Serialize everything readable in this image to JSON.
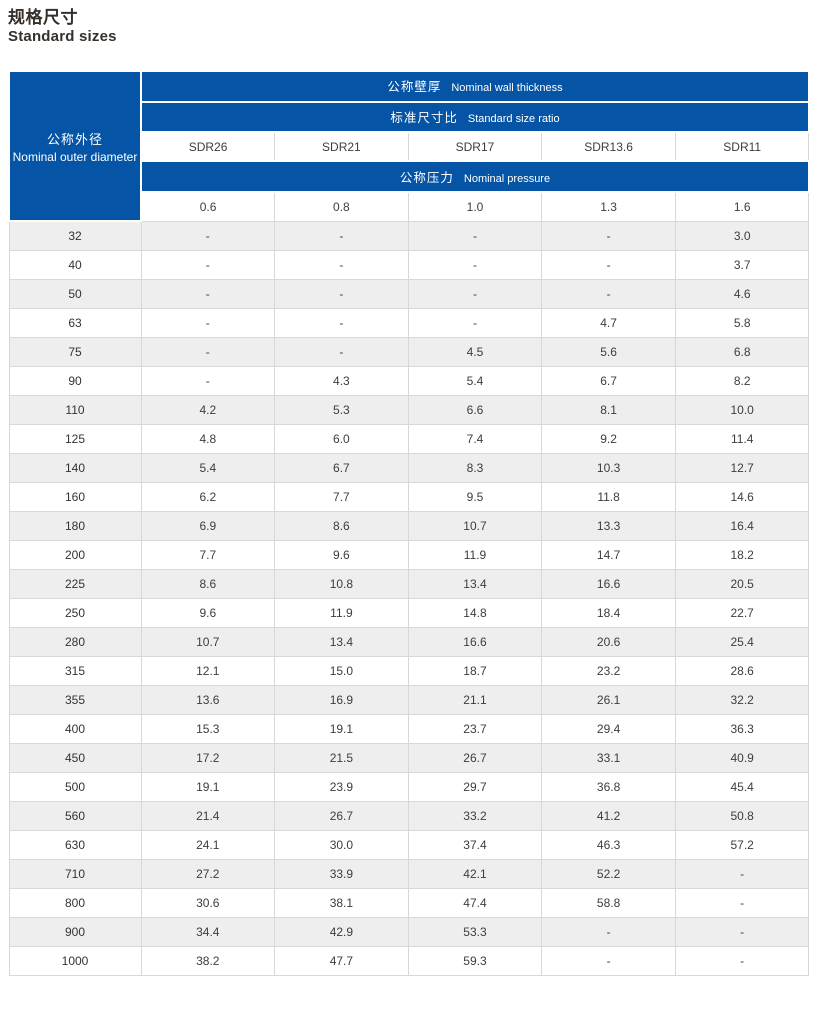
{
  "page": {
    "title_zh": "规格尺寸",
    "title_en": "Standard sizes"
  },
  "colors": {
    "header_blue": "#0554a5",
    "row_stripe": "#eeeeef",
    "cell_border": "#d8d8d8",
    "title_text": "#35302c",
    "cell_text": "#3d3d3d"
  },
  "table": {
    "corner": {
      "zh": "公称外径",
      "en": "Nominal outer diameter"
    },
    "bands": {
      "wall_thickness": {
        "zh": "公称壁厚",
        "en": "Nominal wall thickness"
      },
      "size_ratio": {
        "zh": "标准尺寸比",
        "en": "Standard size ratio"
      },
      "pressure": {
        "zh": "公称压力",
        "en": "Nominal pressure"
      }
    },
    "sdr_columns": [
      "SDR26",
      "SDR21",
      "SDR17",
      "SDR13.6",
      "SDR11"
    ],
    "pressure_values": [
      "0.6",
      "0.8",
      "1.0",
      "1.3",
      "1.6"
    ],
    "rows": [
      {
        "diameter": "32",
        "values": [
          "-",
          "-",
          "-",
          "-",
          "3.0"
        ]
      },
      {
        "diameter": "40",
        "values": [
          "-",
          "-",
          "-",
          "-",
          "3.7"
        ]
      },
      {
        "diameter": "50",
        "values": [
          "-",
          "-",
          "-",
          "-",
          "4.6"
        ]
      },
      {
        "diameter": "63",
        "values": [
          "-",
          "-",
          "-",
          "4.7",
          "5.8"
        ]
      },
      {
        "diameter": "75",
        "values": [
          "-",
          "-",
          "4.5",
          "5.6",
          "6.8"
        ]
      },
      {
        "diameter": "90",
        "values": [
          "-",
          "4.3",
          "5.4",
          "6.7",
          "8.2"
        ]
      },
      {
        "diameter": "110",
        "values": [
          "4.2",
          "5.3",
          "6.6",
          "8.1",
          "10.0"
        ]
      },
      {
        "diameter": "125",
        "values": [
          "4.8",
          "6.0",
          "7.4",
          "9.2",
          "11.4"
        ]
      },
      {
        "diameter": "140",
        "values": [
          "5.4",
          "6.7",
          "8.3",
          "10.3",
          "12.7"
        ]
      },
      {
        "diameter": "160",
        "values": [
          "6.2",
          "7.7",
          "9.5",
          "11.8",
          "14.6"
        ]
      },
      {
        "diameter": "180",
        "values": [
          "6.9",
          "8.6",
          "10.7",
          "13.3",
          "16.4"
        ]
      },
      {
        "diameter": "200",
        "values": [
          "7.7",
          "9.6",
          "11.9",
          "14.7",
          "18.2"
        ]
      },
      {
        "diameter": "225",
        "values": [
          "8.6",
          "10.8",
          "13.4",
          "16.6",
          "20.5"
        ]
      },
      {
        "diameter": "250",
        "values": [
          "9.6",
          "11.9",
          "14.8",
          "18.4",
          "22.7"
        ]
      },
      {
        "diameter": "280",
        "values": [
          "10.7",
          "13.4",
          "16.6",
          "20.6",
          "25.4"
        ]
      },
      {
        "diameter": "315",
        "values": [
          "12.1",
          "15.0",
          "18.7",
          "23.2",
          "28.6"
        ]
      },
      {
        "diameter": "355",
        "values": [
          "13.6",
          "16.9",
          "21.1",
          "26.1",
          "32.2"
        ]
      },
      {
        "diameter": "400",
        "values": [
          "15.3",
          "19.1",
          "23.7",
          "29.4",
          "36.3"
        ]
      },
      {
        "diameter": "450",
        "values": [
          "17.2",
          "21.5",
          "26.7",
          "33.1",
          "40.9"
        ]
      },
      {
        "diameter": "500",
        "values": [
          "19.1",
          "23.9",
          "29.7",
          "36.8",
          "45.4"
        ]
      },
      {
        "diameter": "560",
        "values": [
          "21.4",
          "26.7",
          "33.2",
          "41.2",
          "50.8"
        ]
      },
      {
        "diameter": "630",
        "values": [
          "24.1",
          "30.0",
          "37.4",
          "46.3",
          "57.2"
        ]
      },
      {
        "diameter": "710",
        "values": [
          "27.2",
          "33.9",
          "42.1",
          "52.2",
          "-"
        ]
      },
      {
        "diameter": "800",
        "values": [
          "30.6",
          "38.1",
          "47.4",
          "58.8",
          "-"
        ]
      },
      {
        "diameter": "900",
        "values": [
          "34.4",
          "42.9",
          "53.3",
          "-",
          "-"
        ]
      },
      {
        "diameter": "1000",
        "values": [
          "38.2",
          "47.7",
          "59.3",
          "-",
          "-"
        ]
      }
    ]
  }
}
